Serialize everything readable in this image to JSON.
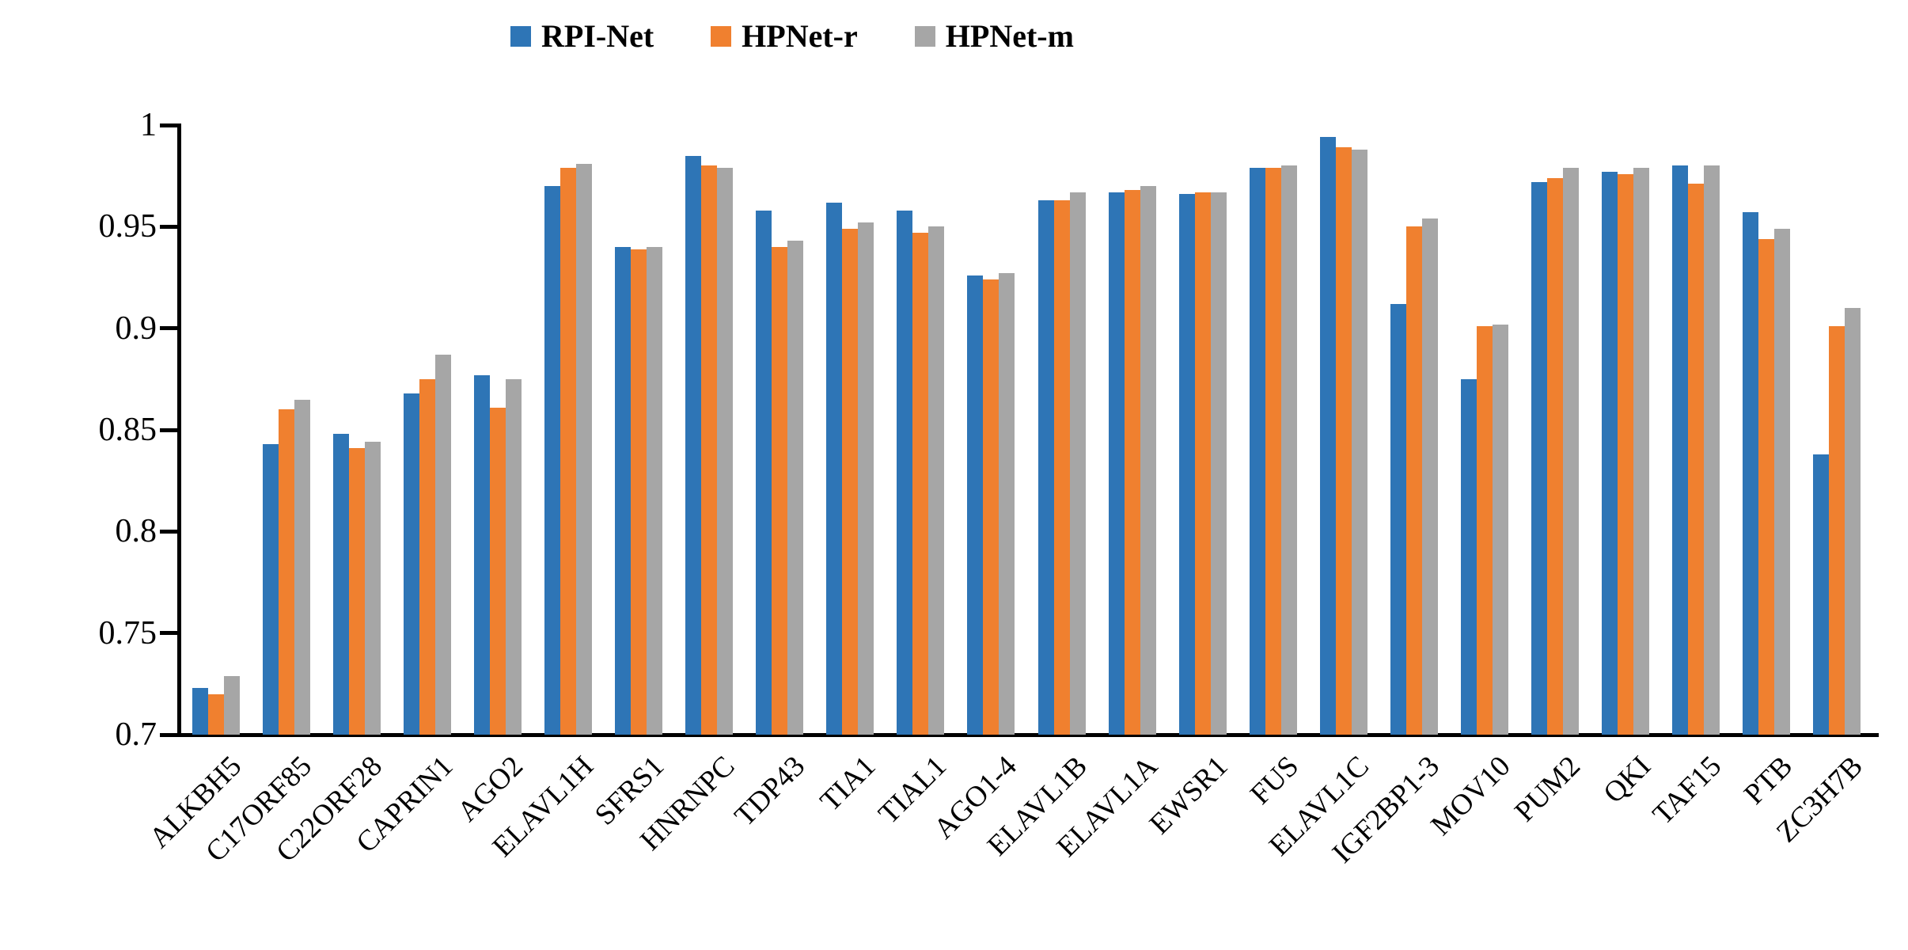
{
  "chart_data": {
    "type": "bar",
    "categories": [
      "ALKBH5",
      "C17ORF85",
      "C22ORF28",
      "CAPRIN1",
      "AGO2",
      "ELAVL1H",
      "SFRS1",
      "HNRNPC",
      "TDP43",
      "TIA1",
      "TIAL1",
      "AGO1-4",
      "ELAVL1B",
      "ELAVL1A",
      "EWSR1",
      "FUS",
      "ELAVL1C",
      "IGF2BP1-3",
      "MOV10",
      "PUM2",
      "QKI",
      "TAF15",
      "PTB",
      "ZC3H7B"
    ],
    "series": [
      {
        "name": "RPI-Net",
        "color": "#2E75B6",
        "values": [
          0.723,
          0.843,
          0.848,
          0.868,
          0.877,
          0.97,
          0.94,
          0.985,
          0.958,
          0.962,
          0.958,
          0.926,
          0.963,
          0.967,
          0.966,
          0.979,
          0.994,
          0.912,
          0.875,
          0.972,
          0.977,
          0.98,
          0.957,
          0.838
        ]
      },
      {
        "name": "HPNet-r",
        "color": "#F0802F",
        "values": [
          0.72,
          0.86,
          0.841,
          0.875,
          0.861,
          0.979,
          0.939,
          0.98,
          0.94,
          0.949,
          0.947,
          0.924,
          0.963,
          0.968,
          0.967,
          0.979,
          0.989,
          0.95,
          0.901,
          0.974,
          0.976,
          0.971,
          0.944,
          0.901
        ]
      },
      {
        "name": "HPNet-m",
        "color": "#A6A6A6",
        "values": [
          0.729,
          0.865,
          0.844,
          0.887,
          0.875,
          0.981,
          0.94,
          0.979,
          0.943,
          0.952,
          0.95,
          0.927,
          0.967,
          0.97,
          0.967,
          0.98,
          0.988,
          0.954,
          0.902,
          0.979,
          0.979,
          0.98,
          0.949,
          0.91
        ]
      }
    ],
    "title": "",
    "xlabel": "",
    "ylabel": "",
    "ylim": [
      0.7,
      1.0
    ],
    "yticks": [
      1.0,
      0.95,
      0.9,
      0.85,
      0.8,
      0.75,
      0.7
    ],
    "ytick_labels": [
      "1",
      "0.95",
      "0.9",
      "0.85",
      "0.8",
      "0.75",
      "0.7"
    ],
    "grid": false,
    "legend_position": "top-center",
    "axis_color": "#000000",
    "text_color": "#000000"
  }
}
